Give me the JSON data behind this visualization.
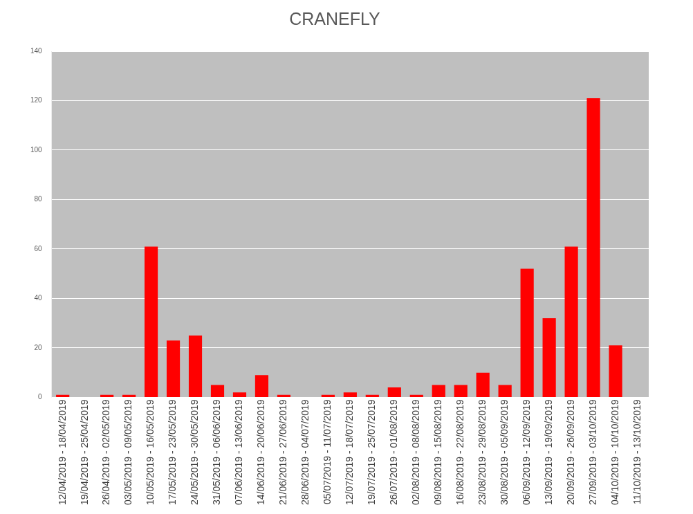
{
  "chart_data": {
    "type": "bar",
    "title": "CRANEFLY",
    "categories": [
      "12/04/2019 - 18/04/2019",
      "19/04/2019 - 25/04/2019",
      "26/04/2019 - 02/05/2019",
      "03/05/2019 - 09/05/2019",
      "10/05/2019 - 16/05/2019",
      "17/05/2019 - 23/05/2019",
      "24/05/2019 - 30/05/2019",
      "31/05/2019 - 06/06/2019",
      "07/06/2019 - 13/06/2019",
      "14/06/2019 - 20/06/2019",
      "21/06/2019 - 27/06/2019",
      "28/06/2019 - 04/07/2019",
      "05/07/2019 - 11/07/2019",
      "12/07/2019 - 18/07/2019",
      "19/07/2019 - 25/07/2019",
      "26/07/2019 - 01/08/2019",
      "02/08/2019 - 08/08/2019",
      "09/08/2019 - 15/08/2019",
      "16/08/2019 - 22/08/2019",
      "23/08/2019 - 29/08/2019",
      "30/08/2019 - 05/09/2019",
      "06/09/2019 - 12/09/2019",
      "13/09/2019 - 19/09/2019",
      "20/09/2019 - 26/09/2019",
      "27/09/2019 - 03/10/2019",
      "04/10/2019 - 10/10/2019",
      "11/10/2019 - 13/10/2019"
    ],
    "values": [
      1,
      0,
      1,
      1,
      61,
      23,
      25,
      5,
      2,
      9,
      1,
      0,
      1,
      2,
      1,
      4,
      1,
      5,
      5,
      10,
      5,
      52,
      32,
      61,
      121,
      21,
      0
    ],
    "color": "#ff0000",
    "ylim": [
      0,
      140
    ],
    "yticks": [
      0,
      20,
      40,
      60,
      80,
      100,
      120,
      140
    ],
    "grid": "y"
  }
}
